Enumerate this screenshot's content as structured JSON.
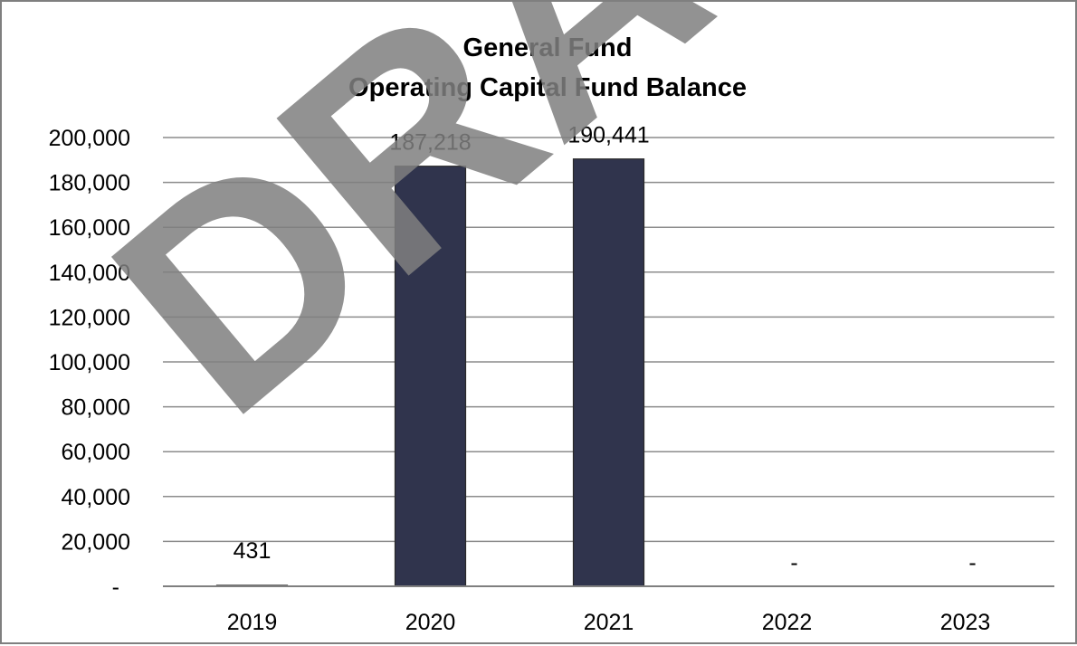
{
  "chart_data": {
    "type": "bar",
    "title_lines": [
      "General Fund",
      "Operating Capital Fund Balance"
    ],
    "categories": [
      "2019",
      "2020",
      "2021",
      "2022",
      "2023"
    ],
    "values": [
      431,
      187218,
      190441,
      0,
      0
    ],
    "data_labels": [
      "431",
      "187,218",
      "190,441",
      "-",
      "-"
    ],
    "y_ticks": [
      0,
      20000,
      40000,
      60000,
      80000,
      100000,
      120000,
      140000,
      160000,
      180000,
      200000
    ],
    "y_tick_labels": [
      "-",
      "20,000",
      "40,000",
      "60,000",
      "80,000",
      "100,000",
      "120,000",
      "140,000",
      "160,000",
      "180,000",
      "200,000"
    ],
    "ylim": [
      0,
      200000
    ],
    "grid": true,
    "legend": "none",
    "bar_color": "#30344d",
    "watermark": "DRAFT"
  }
}
